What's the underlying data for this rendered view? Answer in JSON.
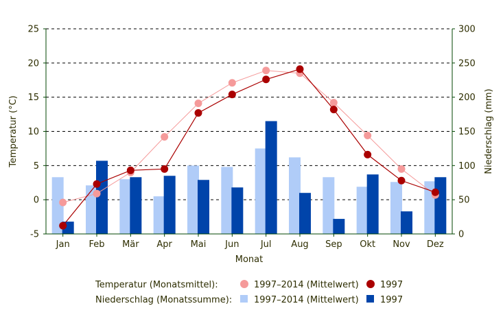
{
  "chart_data": {
    "type": "bar+line",
    "xlabel": "Monat",
    "ylabel_left": "Temperatur (°C)",
    "ylabel_right": "Niederschlag (mm)",
    "ylim_left": [
      -5,
      25
    ],
    "ylim_right": [
      0,
      300
    ],
    "yticks_left": [
      -5,
      0,
      5,
      10,
      15,
      20,
      25
    ],
    "yticks_right": [
      0,
      50,
      100,
      150,
      200,
      250,
      300
    ],
    "grid": "horizontal dashed",
    "categories": [
      "Jan",
      "Feb",
      "Mär",
      "Apr",
      "Mai",
      "Jun",
      "Jul",
      "Aug",
      "Sep",
      "Okt",
      "Nov",
      "Dez"
    ],
    "precipitation": [
      {
        "name": "1997–2014 (Mittelwert)",
        "color": "#b0ccf8",
        "values": [
          83,
          71,
          80,
          55,
          100,
          98,
          125,
          112,
          83,
          69,
          76,
          77
        ]
      },
      {
        "name": "1997",
        "color": "#0044aa",
        "values": [
          18,
          107,
          83,
          85,
          79,
          68,
          165,
          60,
          22,
          87,
          33,
          83
        ]
      }
    ],
    "temperature": [
      {
        "name": "1997–2014 (Mittelwert)",
        "color": "#f59a9a",
        "values": [
          -0.4,
          0.9,
          4.0,
          9.2,
          14.1,
          17.1,
          18.9,
          18.5,
          14.2,
          9.4,
          4.5,
          0.7
        ]
      },
      {
        "name": "1997",
        "color": "#aa0000",
        "values": [
          -3.8,
          2.3,
          4.3,
          4.5,
          12.7,
          15.4,
          17.6,
          19.1,
          13.2,
          6.6,
          2.8,
          1.1
        ]
      }
    ],
    "legend": {
      "position": "bottom",
      "temperature_label": "Temperatur (Monatsmittel):",
      "precipitation_label": "Niederschlag (Monatssumme):",
      "avg_label": "1997–2014 (Mittelwert)",
      "year_label": "1997"
    }
  }
}
